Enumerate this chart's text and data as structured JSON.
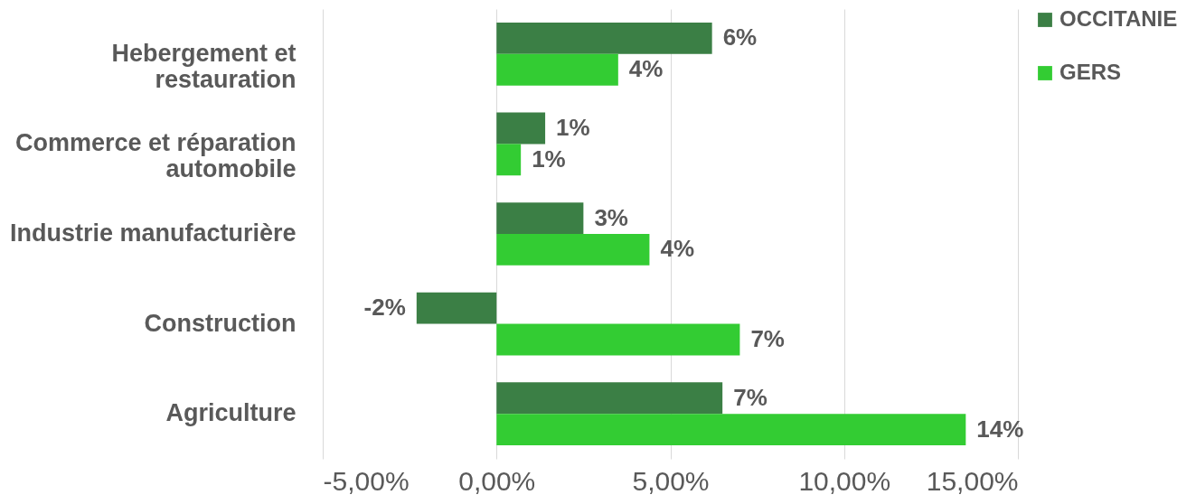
{
  "chart_data": {
    "type": "bar",
    "orientation": "horizontal",
    "categories": [
      "Hebergement et restauration",
      "Commerce et réparation automobile",
      "Industrie manufacturière",
      "Construction",
      "Agriculture"
    ],
    "series": [
      {
        "name": "OCCITANIE",
        "color": "#3b7f45",
        "values": [
          6.2,
          1.4,
          2.5,
          -2.3,
          6.5
        ],
        "value_labels": [
          "6%",
          "1%",
          "3%",
          "-2%",
          "7%"
        ]
      },
      {
        "name": "GERS",
        "color": "#33cc33",
        "values": [
          3.5,
          0.7,
          4.4,
          7.0,
          13.5
        ],
        "value_labels": [
          "4%",
          "1%",
          "4%",
          "7%",
          "14%"
        ]
      }
    ],
    "xlim": [
      -5,
      15
    ],
    "xticks": [
      {
        "value": -5,
        "label": "-5,00%"
      },
      {
        "value": 0,
        "label": "0,00%"
      },
      {
        "value": 5,
        "label": "5,00%"
      },
      {
        "value": 10,
        "label": "10,00%"
      },
      {
        "value": 15,
        "label": "15,00%"
      }
    ],
    "grid": "x",
    "legend": "right"
  }
}
